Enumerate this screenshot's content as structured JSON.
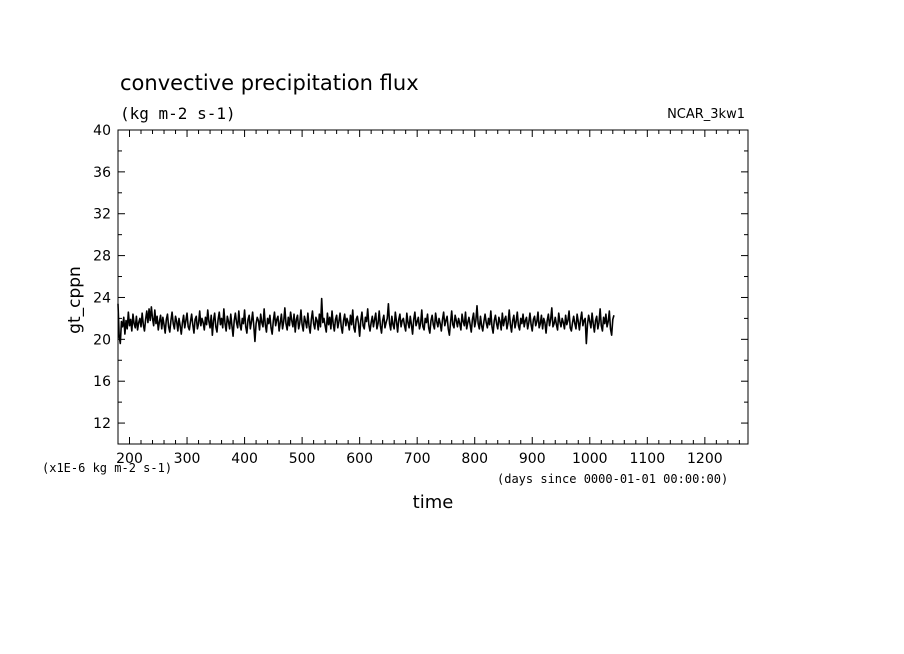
{
  "chart_data": {
    "type": "line",
    "title": "convective precipitation flux",
    "subtitle": "(kg m-2 s-1)",
    "dataset_label": "NCAR_3kw1",
    "xlabel": "time",
    "ylabel": "gt_cppn",
    "x_units_label": "(days since 0000-01-01 00:00:00)",
    "y_scale_label": "(x1E-6 kg m-2 s-1)",
    "xlim": [
      180,
      1275
    ],
    "ylim": [
      10,
      40
    ],
    "x_ticks": [
      200,
      300,
      400,
      500,
      600,
      700,
      800,
      900,
      1000,
      1100,
      1200
    ],
    "y_ticks": [
      12,
      16,
      20,
      24,
      28,
      32,
      36,
      40
    ],
    "grid": false,
    "series": [
      {
        "color": "#000000",
        "x_start": 180,
        "x_step": 2,
        "values": [
          23.4,
          20.3,
          19.6,
          21.7,
          21.2,
          22.1,
          20.5,
          21.8,
          21.0,
          22.6,
          21.3,
          21.9,
          20.8,
          22.4,
          21.5,
          21.1,
          22.2,
          20.9,
          21.6,
          22.0,
          21.2,
          22.5,
          21.4,
          20.8,
          21.9,
          22.7,
          21.6,
          22.9,
          21.8,
          23.1,
          22.0,
          21.3,
          22.8,
          21.5,
          22.2,
          20.9,
          21.7,
          22.3,
          21.0,
          22.1,
          21.4,
          20.6,
          21.9,
          22.4,
          21.2,
          20.7,
          21.8,
          22.6,
          21.5,
          21.0,
          22.2,
          21.7,
          20.8,
          22.0,
          21.3,
          20.5,
          21.6,
          22.3,
          21.1,
          21.8,
          22.5,
          21.2,
          20.9,
          21.7,
          22.4,
          21.4,
          20.6,
          21.9,
          22.2,
          21.0,
          21.5,
          22.7,
          21.3,
          22.0,
          21.6,
          20.9,
          22.1,
          21.4,
          22.8,
          21.7,
          21.1,
          22.3,
          20.4,
          21.8,
          22.5,
          21.2,
          20.7,
          21.9,
          22.6,
          21.4,
          22.0,
          21.1,
          22.9,
          21.5,
          20.8,
          22.2,
          21.7,
          21.0,
          22.4,
          21.3,
          20.3,
          21.8,
          22.5,
          21.6,
          21.1,
          22.7,
          21.4,
          20.9,
          22.0,
          21.5,
          22.8,
          21.2,
          20.6,
          21.9,
          22.3,
          21.0,
          21.7,
          22.6,
          21.3,
          19.8,
          21.5,
          22.1,
          21.8,
          20.9,
          22.4,
          21.6,
          21.2,
          22.9,
          21.4,
          20.7,
          22.0,
          21.5,
          22.3,
          21.1,
          20.5,
          21.8,
          22.6,
          21.3,
          21.9,
          22.2,
          20.8,
          21.6,
          22.4,
          21.0,
          21.7,
          23.0,
          21.5,
          20.9,
          22.1,
          21.3,
          22.6,
          21.8,
          21.2,
          22.4,
          20.7,
          21.9,
          22.3,
          21.0,
          21.6,
          22.8,
          21.4,
          20.8,
          22.2,
          21.7,
          21.1,
          22.5,
          21.3,
          20.6,
          21.9,
          22.7,
          21.5,
          21.0,
          22.1,
          21.8,
          20.9,
          22.4,
          21.2,
          23.9,
          21.6,
          22.0,
          21.3,
          20.7,
          22.5,
          21.4,
          22.1,
          21.0,
          22.7,
          21.5,
          20.8,
          21.9,
          22.3,
          21.1,
          21.7,
          22.5,
          21.2,
          20.6,
          21.8,
          22.4,
          21.3,
          22.0,
          21.6,
          20.9,
          22.3,
          21.4,
          22.8,
          21.1,
          20.7,
          21.9,
          22.2,
          21.5,
          20.3,
          21.8,
          22.6,
          21.3,
          21.0,
          22.1,
          21.7,
          22.9,
          21.4,
          20.8,
          21.6,
          22.2,
          21.2,
          21.9,
          22.5,
          21.0,
          21.5,
          22.7,
          21.3,
          20.6,
          21.8,
          22.3,
          21.1,
          21.6,
          22.0,
          23.4,
          21.5,
          20.9,
          22.2,
          21.4,
          21.0,
          22.6,
          21.7,
          20.7,
          21.9,
          22.4,
          21.2,
          21.8,
          22.0,
          21.3,
          20.8,
          22.5,
          21.6,
          21.1,
          22.2,
          21.4,
          20.5,
          21.9,
          22.6,
          21.3,
          21.7,
          22.1,
          21.0,
          21.5,
          22.8,
          21.2,
          20.9,
          22.0,
          21.6,
          22.4,
          21.1,
          20.6,
          21.8,
          22.3,
          21.4,
          21.0,
          22.5,
          21.7,
          21.2,
          22.0,
          21.5,
          20.8,
          21.9,
          22.6,
          21.3,
          21.8,
          22.2,
          21.0,
          20.4,
          21.6,
          22.7,
          21.4,
          21.1,
          22.3,
          21.8,
          21.2,
          22.0,
          21.5,
          20.9,
          22.4,
          21.7,
          21.3,
          22.6,
          21.0,
          21.6,
          22.1,
          21.4,
          20.7,
          21.9,
          22.5,
          21.2,
          21.8,
          23.2,
          21.5,
          21.0,
          22.2,
          21.3,
          20.8,
          21.7,
          22.4,
          21.6,
          21.1,
          22.0,
          21.4,
          22.7,
          21.2,
          20.6,
          21.8,
          22.3,
          21.5,
          21.0,
          22.1,
          21.7,
          20.9,
          22.5,
          21.3,
          21.9,
          22.2,
          21.0,
          21.6,
          22.8,
          21.4,
          20.7,
          21.8,
          22.3,
          21.1,
          21.7,
          22.6,
          21.3,
          20.9,
          22.0,
          21.5,
          22.4,
          21.2,
          21.8,
          22.1,
          21.0,
          21.6,
          22.5,
          21.4,
          20.8,
          21.9,
          22.2,
          21.3,
          21.7,
          22.6,
          21.1,
          21.5,
          22.3,
          21.0,
          22.0,
          21.6,
          20.6,
          21.8,
          22.4,
          21.3,
          21.9,
          23.0,
          21.2,
          21.5,
          22.1,
          21.4,
          20.9,
          22.5,
          21.7,
          21.2,
          22.0,
          21.6,
          21.0,
          22.3,
          21.4,
          21.8,
          22.7,
          21.1,
          20.8,
          21.6,
          22.2,
          21.5,
          21.0,
          22.4,
          21.7,
          20.9,
          21.9,
          22.6,
          21.3,
          21.8,
          22.0,
          19.6,
          21.4,
          22.3,
          21.7,
          21.1,
          22.5,
          21.5,
          20.7,
          21.8,
          22.2,
          21.0,
          21.6,
          22.9,
          21.3,
          20.8,
          22.1,
          21.5,
          22.4,
          21.2,
          21.7,
          22.7,
          21.0,
          20.4,
          21.9,
          22.3
        ]
      }
    ]
  }
}
